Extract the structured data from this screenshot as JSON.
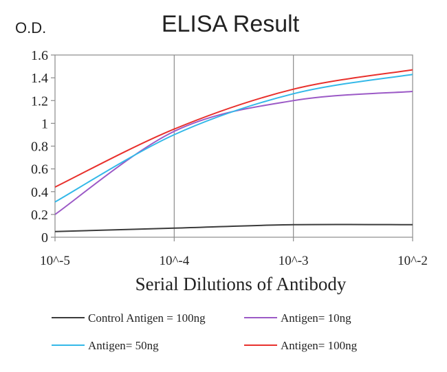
{
  "chart_data": {
    "type": "line",
    "title": "ELISA Result",
    "ylabel": "O.D.",
    "xlabel": "Serial Dilutions  of Antibody",
    "x": [
      0.01,
      0.001,
      0.0001,
      1e-05
    ],
    "x_scale": "log",
    "x_tick_labels": [
      "10^-2",
      "10^-3",
      "10^-4",
      "10^-5"
    ],
    "ylim": [
      0,
      1.6
    ],
    "y_ticks": [
      0,
      0.2,
      0.4,
      0.6,
      0.8,
      1,
      1.2,
      1.4,
      1.6
    ],
    "y_tick_labels": [
      "0",
      "0.2",
      "0.4",
      "0.6",
      "0.8",
      "1",
      "1.2",
      "1.4",
      "1.6"
    ],
    "grid": "vertical",
    "legend_position": "bottom",
    "series": [
      {
        "name": "Control Antigen = 100ng",
        "color": "#3a3a3a",
        "values": [
          0.11,
          0.11,
          0.08,
          0.05
        ]
      },
      {
        "name": "Antigen= 10ng",
        "color": "#9b59c6",
        "values": [
          1.28,
          1.2,
          0.93,
          0.2
        ]
      },
      {
        "name": "Antigen= 50ng",
        "color": "#33b8e8",
        "values": [
          1.43,
          1.26,
          0.9,
          0.31
        ]
      },
      {
        "name": "Antigen= 100ng",
        "color": "#e8302c",
        "values": [
          1.47,
          1.3,
          0.95,
          0.44
        ]
      }
    ]
  }
}
